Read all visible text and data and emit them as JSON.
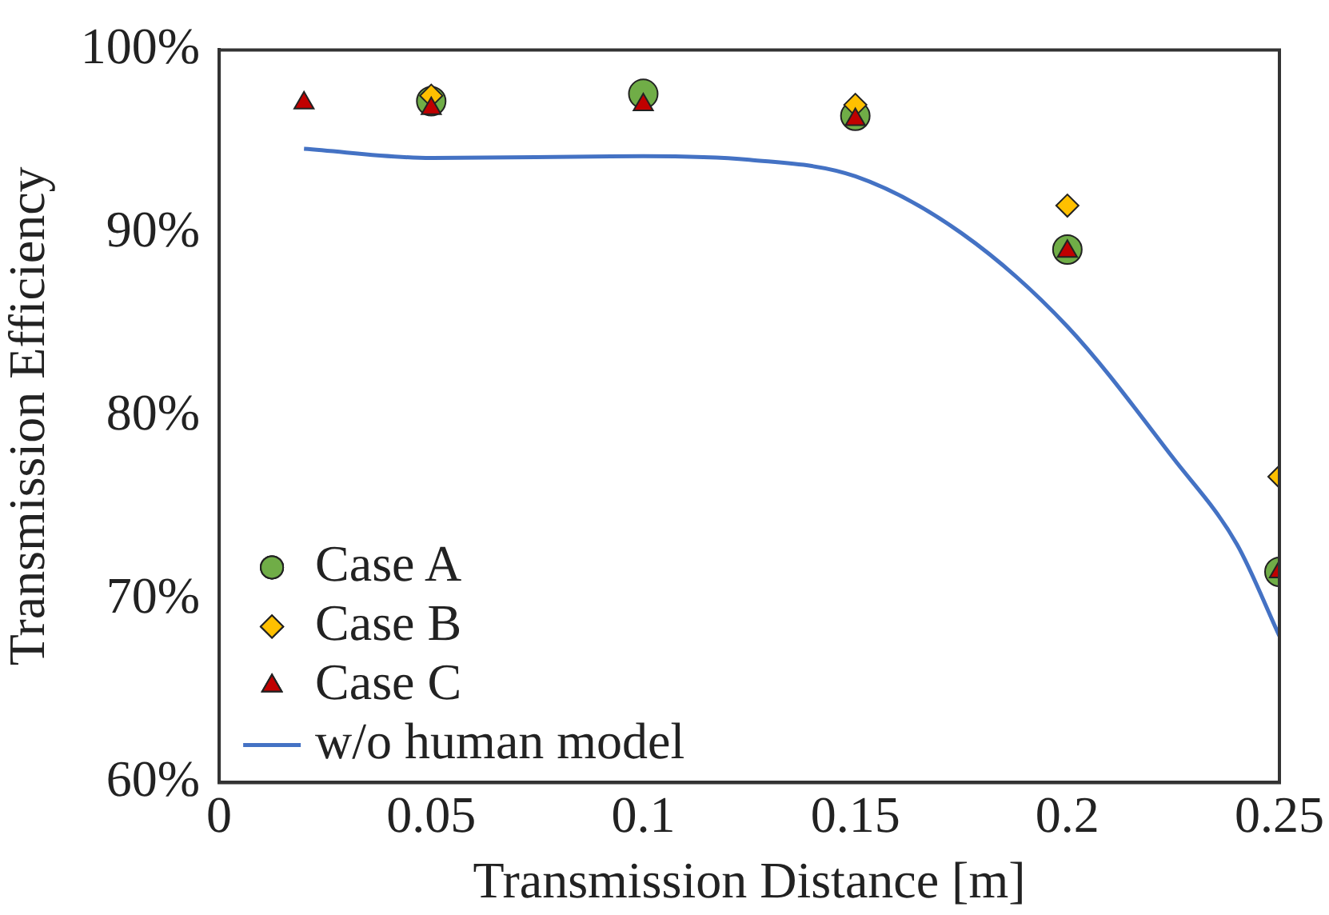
{
  "chart_data": {
    "type": "scatter",
    "xlabel": "Transmission Distance [m]",
    "ylabel": "Transmission Efficiency",
    "xlim": [
      0,
      0.25
    ],
    "xticks": [
      0,
      0.05,
      0.1,
      0.15,
      0.2,
      0.25
    ],
    "ylim": [
      60,
      100
    ],
    "yticks": [
      {
        "value": 60,
        "label": "60%"
      },
      {
        "value": 70,
        "label": "70%"
      },
      {
        "value": 80,
        "label": "80%"
      },
      {
        "value": 90,
        "label": "90%"
      },
      {
        "value": 100,
        "label": "100%"
      }
    ],
    "grid": false,
    "legend": "bottom left",
    "series": [
      {
        "name": "Case A",
        "marker": "circle",
        "color": "#70ad47",
        "x": [
          0.05,
          0.1,
          0.15,
          0.2,
          0.25
        ],
        "values": [
          97.2,
          97.6,
          96.4,
          89.1,
          71.5
        ]
      },
      {
        "name": "Case B",
        "marker": "diamond",
        "color": "#ffc000",
        "x": [
          0.05,
          0.15,
          0.2,
          0.25
        ],
        "values": [
          97.5,
          97.0,
          91.5,
          76.7
        ]
      },
      {
        "name": "Case C",
        "marker": "triangle",
        "color": "#c00000",
        "x": [
          0.02,
          0.05,
          0.1,
          0.15,
          0.2,
          0.25
        ],
        "values": [
          97.1,
          96.8,
          97.0,
          96.2,
          89.0,
          71.5
        ]
      },
      {
        "name": "w/o human model",
        "type": "line",
        "marker": "none",
        "color": "#4472c4",
        "x": [
          0.02,
          0.05,
          0.1,
          0.125,
          0.15,
          0.175,
          0.2,
          0.225,
          0.24,
          0.25
        ],
        "values": [
          94.6,
          94.1,
          94.2,
          94.0,
          93.1,
          90.0,
          84.9,
          77.7,
          73.0,
          68.0
        ]
      }
    ]
  }
}
